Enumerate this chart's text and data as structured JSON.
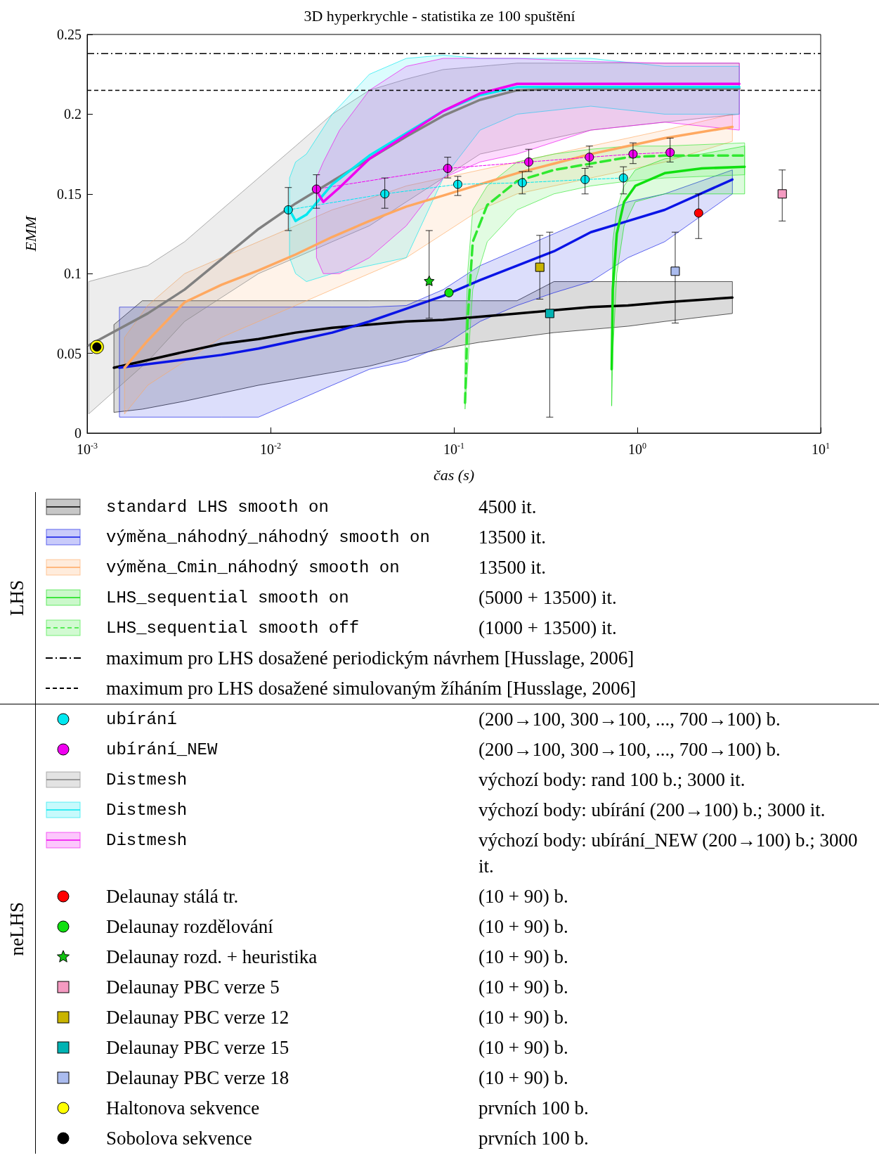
{
  "chart_data": {
    "type": "line",
    "title": "3D hyperkrychle - statistika ze 100 spuštění",
    "xlabel": "čas (s)",
    "ylabel": "EMM",
    "log": "x",
    "legend": "bottom",
    "xlim": [
      0.001,
      10
    ],
    "ylim": [
      0,
      0.25
    ],
    "xticks": [
      {
        "value": 0.001,
        "label": "10$^{-3}$"
      },
      {
        "value": 0.01,
        "label": "10$^{-2}$"
      },
      {
        "value": 0.1,
        "label": "10$^{-1}$"
      },
      {
        "value": 1,
        "label": "10$^{0}$"
      },
      {
        "value": 10,
        "label": "10$^{1}$"
      }
    ],
    "yticks": [
      0,
      0.05,
      0.1,
      0.15,
      0.2,
      0.25
    ],
    "annotations": [
      "LHS",
      "neLHS",
      "4500 it.",
      "13500 it.",
      "13500 it.",
      "(5000 + 13500) it.",
      "(1000 + 13500) it.",
      "(200→100, 300→100, ..., 700→100) b.",
      "(200→100, 300→100, ..., 700→100) b.",
      "výchozí body: rand 100 b.; 3000 it.",
      "výchozí body: ubírání (200→100) b.; 3000 it.",
      "výchozí body: ubírání_NEW (200→100) b.; 3000 it.",
      "(10 + 90) b.",
      "(10 + 90) b.",
      "(10 + 90) b.",
      "(10 + 90) b.",
      "(10 + 90) b.",
      "(10 + 90) b.",
      "(10 + 90) b.",
      "prvních 100 b.",
      "prvních 100 b."
    ],
    "ref_lines": [
      {
        "axis": "y",
        "value": 0.238,
        "label": "maximum pro LHS dosažené periodickým návrhem [Husslage, 2006]",
        "color": "#000000",
        "line_style": "dashdot"
      },
      {
        "axis": "y",
        "value": 0.215,
        "label": "maximum pro LHS dosažené simulovaným žíháním [Husslage, 2006]",
        "color": "#000000",
        "line_style": "dashed"
      }
    ],
    "series": [
      {
        "name": "standard LHS smooth on",
        "marker": "none",
        "color": "#000000",
        "x": [
          0.0014,
          0.002,
          0.0034,
          0.0054,
          0.0086,
          0.0137,
          0.0217,
          0.0346,
          0.055,
          0.0875,
          0.139,
          0.221,
          0.351,
          0.558,
          0.889,
          1.41,
          3.3
        ],
        "values": [
          0.041,
          0.045,
          0.051,
          0.056,
          0.059,
          0.063,
          0.066,
          0.068,
          0.07,
          0.071,
          0.073,
          0.075,
          0.077,
          0.079,
          0.08,
          0.082,
          0.085
        ],
        "upper": [
          0.068,
          0.083,
          0.083,
          0.083,
          0.083,
          0.083,
          0.083,
          0.083,
          0.083,
          0.083,
          0.083,
          0.083,
          0.095,
          0.095,
          0.095,
          0.095,
          0.095
        ],
        "lower": [
          0.013,
          0.015,
          0.02,
          0.025,
          0.03,
          0.034,
          0.038,
          0.042,
          0.048,
          0.053,
          0.057,
          0.06,
          0.063,
          0.065,
          0.067,
          0.07,
          0.075
        ]
      },
      {
        "name": "výměna_náhodný_náhodný smooth on",
        "marker": "none",
        "color": "#0a14e6",
        "x": [
          0.0015,
          0.0054,
          0.0086,
          0.0137,
          0.0217,
          0.0346,
          0.055,
          0.0875,
          0.139,
          0.221,
          0.351,
          0.558,
          0.889,
          1.41,
          3.3
        ],
        "values": [
          0.041,
          0.049,
          0.053,
          0.058,
          0.063,
          0.07,
          0.078,
          0.086,
          0.096,
          0.105,
          0.114,
          0.126,
          0.133,
          0.14,
          0.159
        ],
        "upper": [
          0.079,
          0.079,
          0.079,
          0.079,
          0.079,
          0.079,
          0.08,
          0.09,
          0.105,
          0.115,
          0.125,
          0.135,
          0.145,
          0.15,
          0.165
        ],
        "lower": [
          0.01,
          0.01,
          0.01,
          0.02,
          0.03,
          0.04,
          0.045,
          0.055,
          0.07,
          0.08,
          0.088,
          0.095,
          0.11,
          0.12,
          0.15
        ]
      },
      {
        "name": "výměna_Cmin_náhodný smooth on",
        "marker": "none",
        "color": "#ffa860",
        "x": [
          0.0016,
          0.00214,
          0.0034,
          0.0054,
          0.0086,
          0.0137,
          0.0217,
          0.0346,
          0.055,
          0.0875,
          0.139,
          0.221,
          0.351,
          0.558,
          0.889,
          1.41,
          3.3
        ],
        "values": [
          0.041,
          0.058,
          0.082,
          0.093,
          0.102,
          0.112,
          0.123,
          0.133,
          0.142,
          0.149,
          0.156,
          0.163,
          0.169,
          0.175,
          0.18,
          0.185,
          0.192
        ],
        "upper": [
          0.06,
          0.08,
          0.1,
          0.11,
          0.12,
          0.13,
          0.14,
          0.147,
          0.155,
          0.16,
          0.165,
          0.17,
          0.175,
          0.18,
          0.185,
          0.19,
          0.2
        ],
        "lower": [
          0.012,
          0.03,
          0.045,
          0.06,
          0.07,
          0.08,
          0.09,
          0.1,
          0.11,
          0.125,
          0.14,
          0.15,
          0.155,
          0.16,
          0.165,
          0.17,
          0.183
        ]
      },
      {
        "name": "LHS_sequential smooth on",
        "marker": "none",
        "color": "#10e010",
        "x": [
          0.725,
          0.735,
          0.773,
          0.847,
          0.975,
          1.41,
          2.25,
          3.85
        ],
        "values": [
          0.04,
          0.09,
          0.125,
          0.145,
          0.155,
          0.163,
          0.166,
          0.167
        ],
        "upper": [
          0.06,
          0.12,
          0.14,
          0.155,
          0.165,
          0.172,
          0.175,
          0.18
        ],
        "lower": [
          0.017,
          0.05,
          0.1,
          0.13,
          0.145,
          0.15,
          0.15,
          0.15
        ]
      },
      {
        "name": "LHS_sequential smooth off",
        "marker": "none",
        "line_style": "dashed",
        "color": "#30e830",
        "x": [
          0.115,
          0.1187,
          0.1267,
          0.152,
          0.221,
          0.351,
          0.558,
          0.889,
          1.41,
          3.85
        ],
        "values": [
          0.019,
          0.07,
          0.12,
          0.143,
          0.158,
          0.165,
          0.169,
          0.173,
          0.174,
          0.174
        ],
        "upper": [
          0.05,
          0.1,
          0.14,
          0.155,
          0.17,
          0.175,
          0.178,
          0.18,
          0.18,
          0.182
        ],
        "lower": [
          0.015,
          0.04,
          0.09,
          0.12,
          0.14,
          0.15,
          0.155,
          0.158,
          0.16,
          0.162
        ]
      },
      {
        "name": "ubírání",
        "marker": "circle",
        "line_style": "dashed",
        "color": "#00e8f0",
        "x": [
          0.0125,
          0.042,
          0.105,
          0.236,
          0.519,
          0.84
        ],
        "values": [
          0.14,
          0.15,
          0.156,
          0.157,
          0.159,
          0.16
        ],
        "errors": [
          [
            0.127,
            0.154
          ],
          [
            0.141,
            0.16
          ],
          [
            0.149,
            0.161
          ],
          [
            0.15,
            0.164
          ],
          [
            0.15,
            0.166
          ],
          [
            0.15,
            0.167
          ]
        ]
      },
      {
        "name": "ubírání_NEW",
        "marker": "circle",
        "line_style": "dashed",
        "color": "#f000f0",
        "x": [
          0.0178,
          0.0925,
          0.256,
          0.548,
          0.948,
          1.51
        ],
        "values": [
          0.153,
          0.166,
          0.17,
          0.173,
          0.175,
          0.176
        ],
        "errors": [
          [
            0.141,
            0.162
          ],
          [
            0.16,
            0.173
          ],
          [
            0.164,
            0.178
          ],
          [
            0.167,
            0.18
          ],
          [
            0.169,
            0.182
          ],
          [
            0.17,
            0.185
          ]
        ]
      },
      {
        "name": "Distmesh",
        "marker": "none",
        "color": "#808080",
        "x": [
          0.00102,
          0.00214,
          0.0034,
          0.0054,
          0.0086,
          0.0137,
          0.0217,
          0.0346,
          0.055,
          0.0875,
          0.139,
          0.221,
          0.351,
          0.558,
          1.41,
          3.6
        ],
        "values": [
          0.055,
          0.075,
          0.09,
          0.109,
          0.128,
          0.144,
          0.158,
          0.172,
          0.186,
          0.199,
          0.209,
          0.215,
          0.216,
          0.216,
          0.216,
          0.216
        ],
        "upper": [
          0.095,
          0.105,
          0.12,
          0.14,
          0.16,
          0.18,
          0.2,
          0.215,
          0.222,
          0.228,
          0.23,
          0.232,
          0.232,
          0.232,
          0.232,
          0.232
        ],
        "lower": [
          0.012,
          0.045,
          0.07,
          0.085,
          0.1,
          0.11,
          0.12,
          0.13,
          0.145,
          0.16,
          0.175,
          0.18,
          0.185,
          0.19,
          0.195,
          0.2
        ]
      },
      {
        "name": "Distmesh",
        "marker": "none",
        "color": "#00e8f0",
        "x": [
          0.0127,
          0.0137,
          0.0157,
          0.0217,
          0.0346,
          0.055,
          0.0875,
          0.139,
          0.221,
          0.558,
          1.41,
          3.6
        ],
        "values": [
          0.14,
          0.133,
          0.137,
          0.156,
          0.174,
          0.188,
          0.202,
          0.212,
          0.217,
          0.217,
          0.217,
          0.217
        ],
        "upper": [
          0.16,
          0.17,
          0.175,
          0.2,
          0.225,
          0.235,
          0.237,
          0.235,
          0.235,
          0.235,
          0.23,
          0.23
        ],
        "lower": [
          0.11,
          0.1,
          0.095,
          0.1,
          0.105,
          0.11,
          0.16,
          0.19,
          0.2,
          0.205,
          0.2,
          0.2
        ]
      },
      {
        "name": "Distmesh",
        "marker": "none",
        "color": "#f000f0",
        "x": [
          0.0178,
          0.0194,
          0.0238,
          0.0346,
          0.055,
          0.0875,
          0.139,
          0.221,
          0.558,
          1.41,
          3.6
        ],
        "values": [
          0.152,
          0.145,
          0.154,
          0.172,
          0.187,
          0.202,
          0.213,
          0.219,
          0.219,
          0.219,
          0.219
        ],
        "upper": [
          0.16,
          0.17,
          0.19,
          0.215,
          0.23,
          0.235,
          0.235,
          0.235,
          0.233,
          0.232,
          0.232
        ],
        "lower": [
          0.11,
          0.1,
          0.1,
          0.11,
          0.13,
          0.16,
          0.17,
          0.175,
          0.19,
          0.195,
          0.19
        ]
      },
      {
        "name": "Delaunay stálá tr.",
        "type": "scatter",
        "marker": "circle",
        "color": "#ff0000",
        "x": [
          2.16
        ],
        "values": [
          0.138
        ],
        "errors": [
          [
            0.122,
            0.15
          ]
        ]
      },
      {
        "name": "Delaunay rozdělování",
        "type": "scatter",
        "marker": "circle",
        "color": "#10e010",
        "x": [
          0.094
        ],
        "values": [
          0.088
        ]
      },
      {
        "name": "Delaunay rozd. + heuristika",
        "type": "scatter",
        "marker": "star",
        "color": "#10c010",
        "x": [
          0.0733
        ],
        "values": [
          0.0955
        ],
        "errors": [
          [
            0.072,
            0.127
          ]
        ]
      },
      {
        "name": "Delaunay PBC verze 5",
        "type": "scatter",
        "marker": "square",
        "color": "#f49ac1",
        "x": [
          6.17
        ],
        "values": [
          0.15
        ],
        "errors": [
          [
            0.133,
            0.165
          ]
        ]
      },
      {
        "name": "Delaunay PBC verze 12",
        "type": "scatter",
        "marker": "square",
        "color": "#c8b400",
        "x": [
          0.294
        ],
        "values": [
          0.104
        ],
        "errors": [
          [
            0.084,
            0.124
          ]
        ]
      },
      {
        "name": "Delaunay PBC verze 15",
        "type": "scatter",
        "marker": "square",
        "color": "#00b3b3",
        "x": [
          0.333
        ],
        "values": [
          0.075
        ],
        "errors": [
          [
            0.01,
            0.126
          ]
        ]
      },
      {
        "name": "Delaunay PBC verze 18",
        "type": "scatter",
        "marker": "square",
        "color": "#aabbee",
        "x": [
          1.61
        ],
        "values": [
          0.1015
        ],
        "errors": [
          [
            0.069,
            0.126
          ]
        ]
      },
      {
        "name": "Haltonova sekvence",
        "type": "scatter",
        "marker": "circle",
        "color": "#ffff00",
        "x": [
          0.00113
        ],
        "values": [
          0.054
        ]
      },
      {
        "name": "Sobolova sekvence",
        "type": "scatter",
        "marker": "circle",
        "color": "#000000",
        "x": [
          0.00113
        ],
        "values": [
          0.054
        ]
      }
    ]
  }
}
